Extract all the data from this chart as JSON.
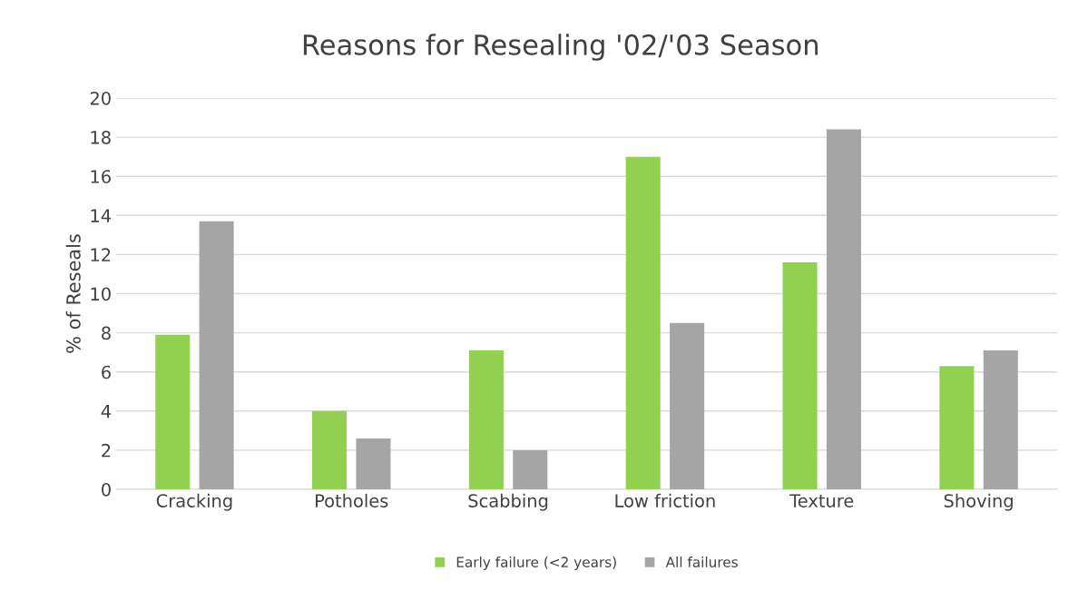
{
  "chart_data": {
    "type": "bar",
    "title": "Reasons for Resealing '02/'03 Season",
    "ylabel": "% of Reseals",
    "categories": [
      "Cracking",
      "Potholes",
      "Scabbing",
      "Low friction",
      "Texture",
      "Shoving"
    ],
    "series": [
      {
        "name": "Early failure (<2 years)",
        "color": "#92d050",
        "values": [
          7.9,
          4.0,
          7.1,
          17.0,
          11.6,
          6.3
        ]
      },
      {
        "name": "All failures",
        "color": "#a5a5a5",
        "values": [
          13.7,
          2.6,
          2.0,
          8.5,
          18.4,
          7.1
        ]
      }
    ],
    "ylim": [
      0,
      20
    ],
    "yticks": [
      0,
      2,
      4,
      6,
      8,
      10,
      12,
      14,
      16,
      18,
      20
    ],
    "grid": "y",
    "legend": "bottom"
  }
}
